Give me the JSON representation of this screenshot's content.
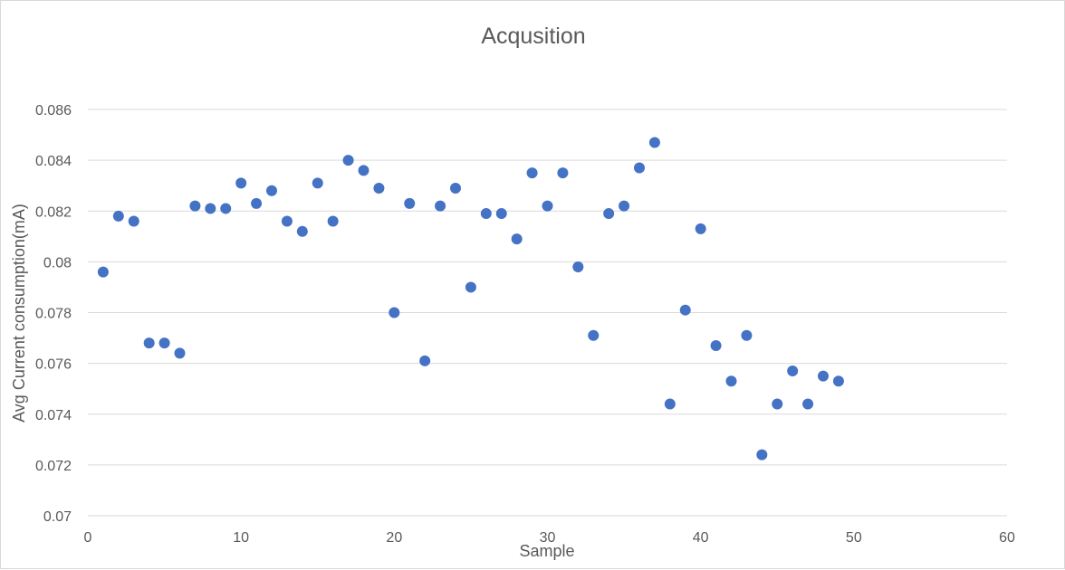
{
  "chart_data": {
    "type": "scatter",
    "title": "Acqusition",
    "xlabel": "Sample",
    "ylabel": "Avg Current consumption(mA)",
    "xlim": [
      0,
      60
    ],
    "ylim": [
      0.07,
      0.086
    ],
    "xticks": [
      "0",
      "10",
      "20",
      "30",
      "40",
      "50",
      "60"
    ],
    "yticks": [
      "0.07",
      "0.072",
      "0.074",
      "0.076",
      "0.078",
      "0.08",
      "0.082",
      "0.084",
      "0.086"
    ],
    "grid": "horizontal",
    "legend": "none",
    "marker_color": "#4472c4",
    "series": [
      {
        "x": [
          1,
          2,
          3,
          4,
          5,
          6,
          7,
          8,
          9,
          10,
          11,
          12,
          13,
          14,
          15,
          16,
          17,
          18,
          19,
          20,
          21,
          22,
          23,
          24,
          25,
          26,
          27,
          28,
          29,
          30,
          31,
          32,
          33,
          34,
          35,
          36,
          37,
          38,
          39,
          40,
          41,
          42,
          43,
          44,
          45,
          46,
          47,
          48,
          49
        ],
        "values": [
          0.0796,
          0.0818,
          0.0816,
          0.0768,
          0.0768,
          0.0764,
          0.0822,
          0.0821,
          0.0821,
          0.0831,
          0.0823,
          0.0828,
          0.0816,
          0.0812,
          0.0831,
          0.0816,
          0.084,
          0.0836,
          0.0829,
          0.078,
          0.0823,
          0.0761,
          0.0822,
          0.0829,
          0.079,
          0.0819,
          0.0819,
          0.0809,
          0.0835,
          0.0822,
          0.0835,
          0.0798,
          0.0771,
          0.0819,
          0.0822,
          0.0837,
          0.0847,
          0.0744,
          0.0781,
          0.0813,
          0.0767,
          0.0753,
          0.0771,
          0.0724,
          0.0744,
          0.0757,
          0.0744,
          0.0755,
          0.0753
        ]
      }
    ]
  }
}
